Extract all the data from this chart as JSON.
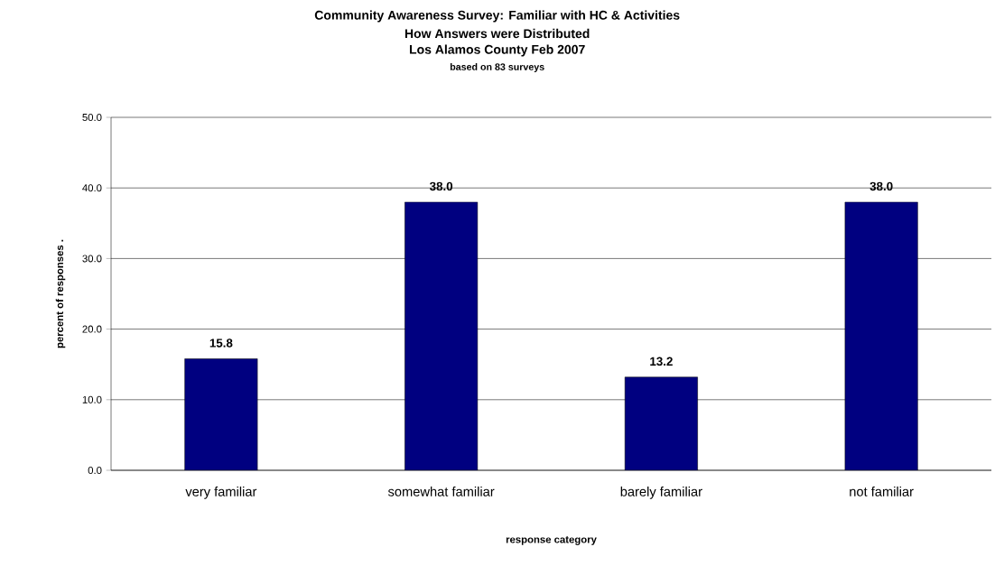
{
  "chart_data": {
    "type": "bar",
    "title": "Community Awareness Survey: Familiar with HC & Activities",
    "subtitle": "How Answers were Distributed",
    "annotations": [
      "Los Alamos County Feb 2007",
      "based on 83 surveys"
    ],
    "xlabel": "response category",
    "ylabel": "percent of responses .",
    "categories": [
      "very familiar",
      "somewhat familiar",
      "barely familiar",
      "not familiar"
    ],
    "values": [
      15.8,
      38.0,
      13.2,
      38.0
    ],
    "value_labels": [
      "15.8",
      "38.0",
      "13.2",
      "38.0"
    ],
    "color": "#000080",
    "ylim": [
      0,
      50
    ],
    "yticks": [
      {
        "value": 0,
        "label": "0.0"
      },
      {
        "value": 10,
        "label": "10.0"
      },
      {
        "value": 20,
        "label": "20.0"
      },
      {
        "value": 30,
        "label": "30.0"
      },
      {
        "value": 40,
        "label": "40.0"
      },
      {
        "value": 50,
        "label": "50.0"
      }
    ],
    "grid": "y"
  }
}
